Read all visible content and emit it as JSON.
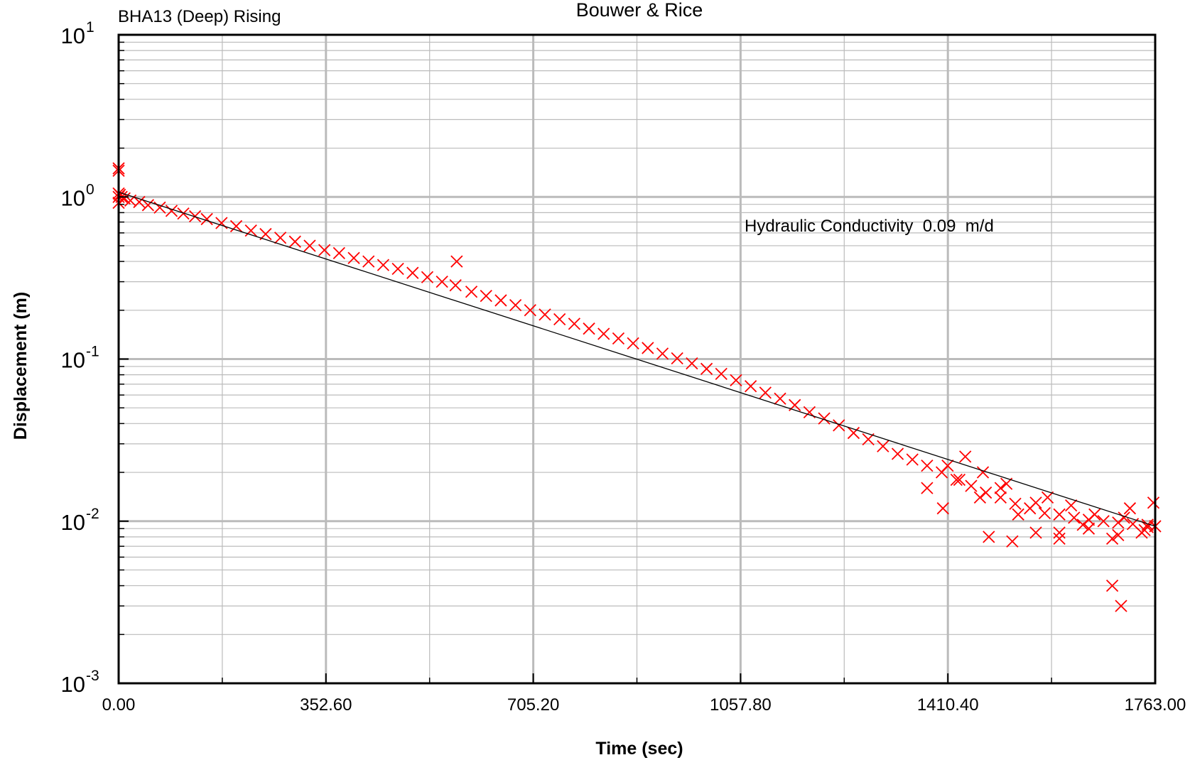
{
  "chart_data": {
    "type": "scatter",
    "title": "Bouwer & Rice",
    "subtitle": "BHA13 (Deep) Rising",
    "xlabel": "Time (sec)",
    "ylabel": "Displacement (m)",
    "xlim": [
      0,
      1763
    ],
    "ylim": [
      0.001,
      10
    ],
    "yscale": "log",
    "grid": true,
    "x_tick_labels": [
      "0.00",
      "352.60",
      "705.20",
      "1057.80",
      "1410.40",
      "1763.00"
    ],
    "y_tick_labels": [
      {
        "base": "10",
        "exp": "-3"
      },
      {
        "base": "10",
        "exp": "-2"
      },
      {
        "base": "10",
        "exp": "-1"
      },
      {
        "base": "10",
        "exp": "0"
      },
      {
        "base": "10",
        "exp": "1"
      }
    ],
    "annotation": "Hydraulic Conductivity  0.09  m/d",
    "colors": {
      "points": "#ff0000",
      "fit_line": "#000000",
      "grid": "#bbbbbb"
    },
    "fit_line": {
      "x": [
        0,
        1763
      ],
      "y": [
        1.07,
        0.0093
      ]
    },
    "series": [
      {
        "marker": "x",
        "x": [
          0,
          0,
          0,
          0,
          0,
          2,
          5,
          10,
          20,
          35,
          50,
          70,
          90,
          110,
          130,
          150,
          175,
          200,
          225,
          250,
          275,
          300,
          325,
          350,
          375,
          400,
          425,
          450,
          475,
          500,
          525,
          550,
          573,
          575,
          600,
          625,
          650,
          675,
          700,
          725,
          750,
          775,
          800,
          825,
          850,
          875,
          900,
          925,
          950,
          975,
          1000,
          1025,
          1050,
          1075,
          1100,
          1125,
          1150,
          1175,
          1200,
          1225,
          1250,
          1275,
          1300,
          1325,
          1350,
          1375,
          1400,
          1425,
          1450,
          1475,
          1500,
          1525,
          1550,
          1575,
          1600,
          1625,
          1650,
          1675,
          1700,
          1725,
          1750,
          1763,
          1375,
          1402,
          1430,
          1465,
          1500,
          1530,
          1560,
          1600,
          1640,
          1690,
          1720,
          1740,
          1760,
          1480,
          1520,
          1560,
          1600,
          1650,
          1700,
          1745,
          1690,
          1705,
          1410,
          1440,
          1470,
          1510,
          1580,
          1620,
          1660,
          1710,
          1750
        ],
        "y": [
          1.5,
          1.45,
          1.05,
          1.0,
          0.92,
          1.03,
          1.0,
          0.98,
          0.95,
          0.93,
          0.89,
          0.86,
          0.82,
          0.79,
          0.76,
          0.73,
          0.69,
          0.66,
          0.62,
          0.59,
          0.56,
          0.53,
          0.5,
          0.47,
          0.45,
          0.42,
          0.4,
          0.38,
          0.36,
          0.34,
          0.32,
          0.3,
          0.285,
          0.4,
          0.26,
          0.245,
          0.23,
          0.215,
          0.2,
          0.188,
          0.176,
          0.165,
          0.154,
          0.143,
          0.134,
          0.125,
          0.117,
          0.108,
          0.101,
          0.094,
          0.087,
          0.081,
          0.074,
          0.068,
          0.062,
          0.057,
          0.052,
          0.047,
          0.043,
          0.039,
          0.035,
          0.032,
          0.029,
          0.026,
          0.024,
          0.022,
          0.02,
          0.018,
          0.0165,
          0.015,
          0.014,
          0.0128,
          0.012,
          0.0112,
          0.011,
          0.0105,
          0.0102,
          0.01,
          0.0098,
          0.0096,
          0.0095,
          0.0093,
          0.016,
          0.012,
          0.018,
          0.014,
          0.016,
          0.011,
          0.013,
          0.0085,
          0.0095,
          0.0078,
          0.012,
          0.0085,
          0.013,
          0.008,
          0.0075,
          0.0085,
          0.0078,
          0.009,
          0.0082,
          0.0088,
          0.004,
          0.003,
          0.022,
          0.025,
          0.02,
          0.017,
          0.014,
          0.0125,
          0.011,
          0.0105,
          0.0092
        ]
      }
    ]
  }
}
